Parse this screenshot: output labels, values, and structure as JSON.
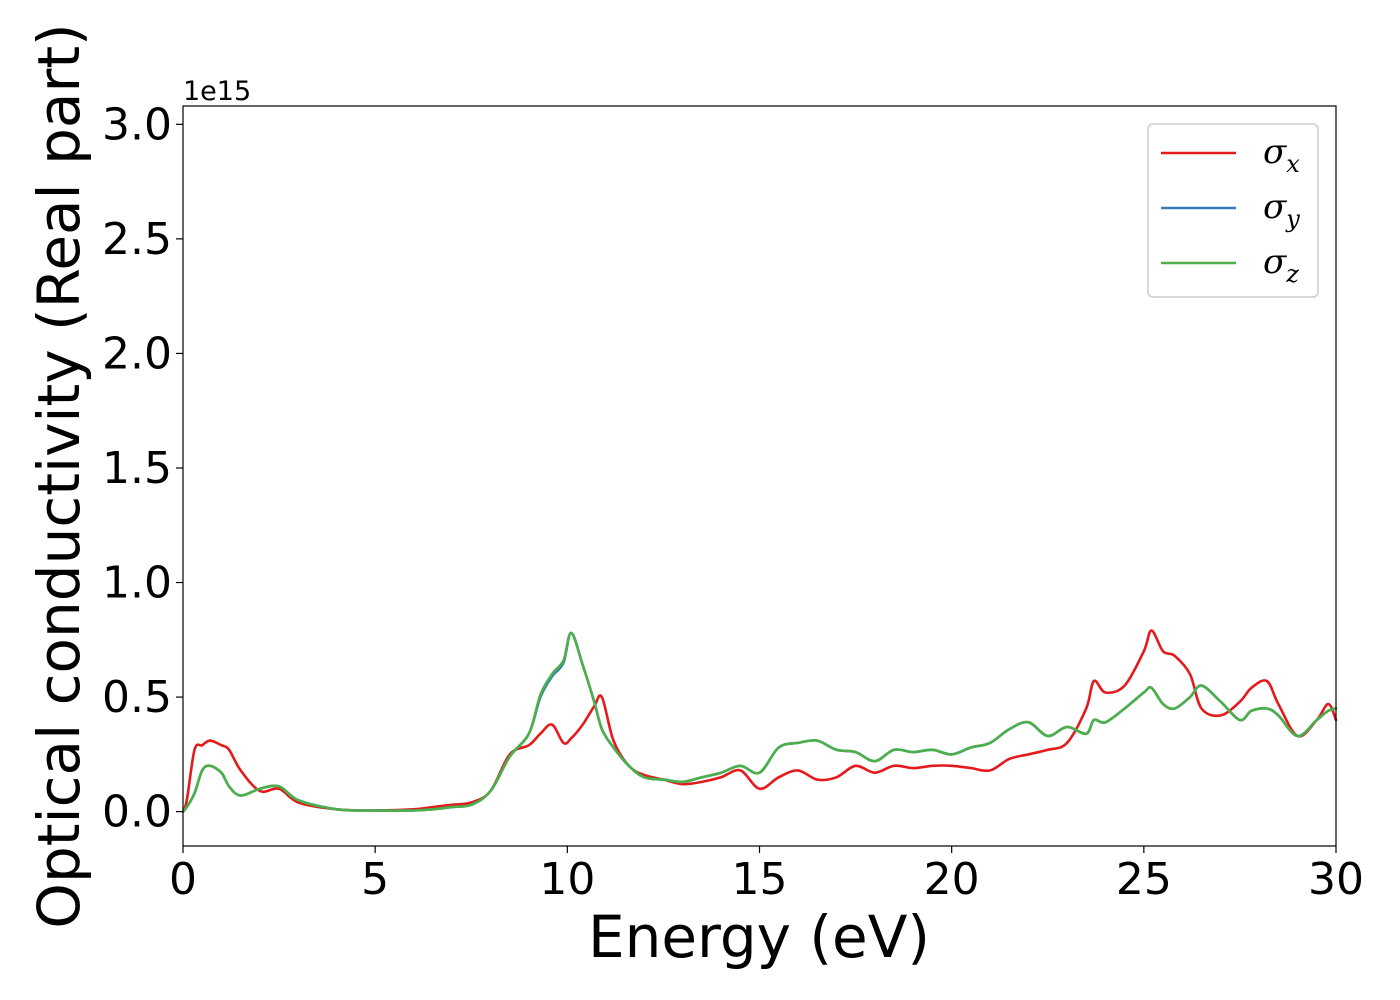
{
  "chart_data": {
    "type": "line",
    "xlabel": "Energy (eV)",
    "ylabel": "Optical conductivity (Real part)",
    "y_offset_label": "1e15",
    "xlim": [
      0,
      30
    ],
    "ylim": [
      -0.15,
      3.08
    ],
    "x_ticks": [
      0,
      5,
      10,
      15,
      20,
      25,
      30
    ],
    "x_tick_labels": [
      "0",
      "5",
      "10",
      "15",
      "20",
      "25",
      "30"
    ],
    "y_ticks": [
      0.0,
      0.5,
      1.0,
      1.5,
      2.0,
      2.5,
      3.0
    ],
    "y_tick_labels": [
      "0.0",
      "0.5",
      "1.0",
      "1.5",
      "2.0",
      "2.5",
      "3.0"
    ],
    "grid": false,
    "legend_position": "top-right",
    "x": [
      0,
      0.1,
      0.3,
      0.5,
      0.7,
      1.0,
      1.2,
      1.5,
      2.0,
      2.5,
      3.0,
      4.0,
      5.0,
      6.0,
      6.5,
      7.0,
      7.5,
      8.0,
      8.5,
      9.0,
      9.3,
      9.6,
      9.9,
      10.1,
      10.4,
      10.7,
      10.9,
      11.2,
      11.6,
      12.0,
      12.5,
      13.0,
      13.5,
      14.0,
      14.5,
      15.0,
      15.5,
      16.0,
      16.5,
      17.0,
      17.5,
      18.0,
      18.5,
      19.0,
      19.5,
      20.0,
      20.5,
      21.0,
      21.5,
      22.0,
      22.5,
      23.0,
      23.5,
      23.7,
      24.0,
      24.5,
      25.0,
      25.2,
      25.5,
      25.8,
      26.2,
      26.5,
      27.0,
      27.5,
      27.8,
      28.2,
      28.5,
      29.0,
      29.5,
      29.8,
      30.0
    ],
    "series": [
      {
        "name": "σx",
        "color": "#e41a1c",
        "values": [
          0.0,
          0.05,
          0.27,
          0.29,
          0.31,
          0.29,
          0.27,
          0.18,
          0.09,
          0.1,
          0.04,
          0.01,
          0.005,
          0.01,
          0.02,
          0.03,
          0.04,
          0.09,
          0.25,
          0.29,
          0.34,
          0.38,
          0.3,
          0.32,
          0.38,
          0.46,
          0.5,
          0.31,
          0.2,
          0.16,
          0.14,
          0.12,
          0.13,
          0.15,
          0.18,
          0.1,
          0.15,
          0.18,
          0.14,
          0.15,
          0.2,
          0.17,
          0.2,
          0.19,
          0.2,
          0.2,
          0.19,
          0.18,
          0.23,
          0.25,
          0.27,
          0.3,
          0.45,
          0.57,
          0.52,
          0.55,
          0.7,
          0.79,
          0.7,
          0.68,
          0.6,
          0.45,
          0.42,
          0.48,
          0.54,
          0.57,
          0.47,
          0.33,
          0.4,
          0.47,
          0.4
        ]
      },
      {
        "name": "σy",
        "color": "#377eb8",
        "values": [
          0.0,
          0.02,
          0.08,
          0.18,
          0.2,
          0.17,
          0.11,
          0.07,
          0.1,
          0.11,
          0.05,
          0.01,
          0.005,
          0.005,
          0.01,
          0.02,
          0.03,
          0.09,
          0.24,
          0.34,
          0.5,
          0.59,
          0.65,
          0.78,
          0.64,
          0.48,
          0.36,
          0.28,
          0.2,
          0.15,
          0.14,
          0.13,
          0.15,
          0.17,
          0.2,
          0.17,
          0.28,
          0.3,
          0.31,
          0.27,
          0.26,
          0.22,
          0.27,
          0.26,
          0.27,
          0.25,
          0.28,
          0.3,
          0.36,
          0.39,
          0.33,
          0.37,
          0.34,
          0.4,
          0.39,
          0.45,
          0.52,
          0.54,
          0.47,
          0.45,
          0.5,
          0.55,
          0.48,
          0.4,
          0.44,
          0.45,
          0.42,
          0.33,
          0.4,
          0.44,
          0.45
        ]
      },
      {
        "name": "σz",
        "color": "#4daf4a",
        "values": [
          0.0,
          0.02,
          0.08,
          0.18,
          0.2,
          0.17,
          0.11,
          0.07,
          0.1,
          0.11,
          0.05,
          0.01,
          0.005,
          0.005,
          0.01,
          0.02,
          0.03,
          0.09,
          0.24,
          0.34,
          0.51,
          0.6,
          0.66,
          0.78,
          0.64,
          0.48,
          0.36,
          0.28,
          0.2,
          0.15,
          0.14,
          0.13,
          0.15,
          0.17,
          0.2,
          0.17,
          0.28,
          0.3,
          0.31,
          0.27,
          0.26,
          0.22,
          0.27,
          0.26,
          0.27,
          0.25,
          0.28,
          0.3,
          0.36,
          0.39,
          0.33,
          0.37,
          0.34,
          0.4,
          0.39,
          0.45,
          0.52,
          0.54,
          0.47,
          0.45,
          0.5,
          0.55,
          0.48,
          0.4,
          0.44,
          0.45,
          0.42,
          0.33,
          0.4,
          0.44,
          0.45
        ]
      }
    ],
    "legend": [
      {
        "symbol": "σ",
        "sub": "x",
        "color": "#e41a1c"
      },
      {
        "symbol": "σ",
        "sub": "y",
        "color": "#377eb8"
      },
      {
        "symbol": "σ",
        "sub": "z",
        "color": "#4daf4a"
      }
    ]
  }
}
